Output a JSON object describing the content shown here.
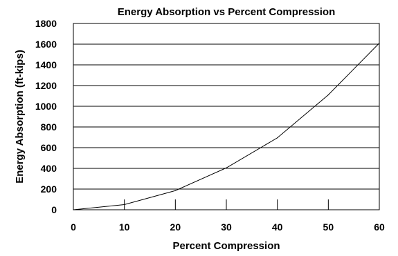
{
  "chart_data": {
    "type": "line",
    "title": "Energy Absorption vs Percent Compression",
    "xlabel": "Percent Compression",
    "ylabel": "Energy Absorption (ft-kips)",
    "xlim": [
      0,
      60
    ],
    "ylim": [
      0,
      1800
    ],
    "xticks": [
      "0",
      "10",
      "20",
      "30",
      "40",
      "50",
      "60"
    ],
    "yticks": [
      "0",
      "200",
      "400",
      "600",
      "800",
      "1000",
      "1200",
      "1400",
      "1600",
      "1800"
    ],
    "grid": "horizontal",
    "legend": "none",
    "series": [
      {
        "color": "#000000",
        "x": [
          0,
          10,
          20,
          30,
          40,
          50,
          60
        ],
        "y": [
          0,
          50,
          185,
          405,
          695,
          1110,
          1610
        ]
      }
    ]
  }
}
